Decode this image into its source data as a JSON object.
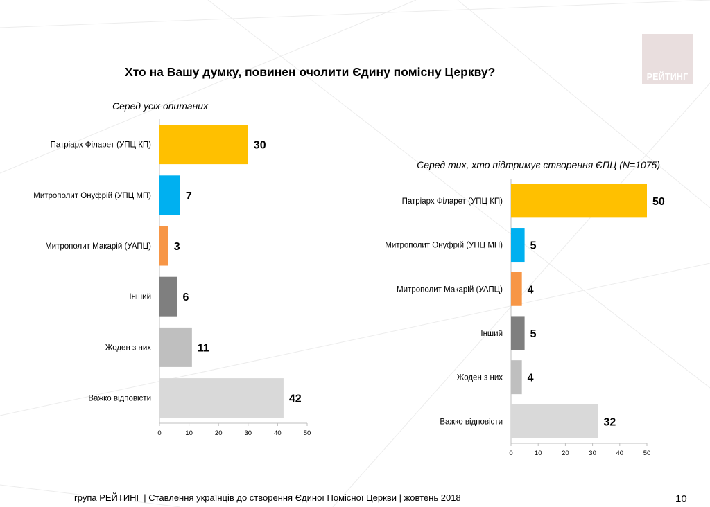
{
  "header": {
    "title": "Хто на Вашу думку, повинен очолити Єдину помісну Церкву?",
    "logo_text": "РЕЙТИНГ"
  },
  "colors": {
    "filaret": "#ffc000",
    "onufriy": "#00b0f0",
    "makariy": "#f79646",
    "inshyi": "#7f7f7f",
    "zhoden": "#bfbfbf",
    "vazhko": "#d9d9d9",
    "logo_bg": "#e9dede"
  },
  "chart_data": [
    {
      "type": "bar",
      "orientation": "horizontal",
      "subtitle": "Серед усіх опитаних",
      "categories": [
        "Патріарх Філарет (УПЦ КП)",
        "Митрополит Онуфрій (УПЦ МП)",
        "Митрополит Макарій (УАПЦ)",
        "Інший",
        "Жоден з них",
        "Важко відповісти"
      ],
      "values": [
        30,
        7,
        3,
        6,
        11,
        42
      ],
      "xlim": [
        0,
        50
      ],
      "xticks": [
        0,
        10,
        20,
        30,
        40,
        50
      ],
      "data_labels": true,
      "grid": false,
      "legend": "none"
    },
    {
      "type": "bar",
      "orientation": "horizontal",
      "subtitle": "Серед тих, хто підтримує створення ЄПЦ (N=1075)",
      "categories": [
        "Патріарх Філарет (УПЦ КП)",
        "Митрополит Онуфрій (УПЦ МП)",
        "Митрополит Макарій (УАПЦ)",
        "Інший",
        "Жоден з них",
        "Важко відповісти"
      ],
      "values": [
        50,
        5,
        4,
        5,
        4,
        32
      ],
      "xlim": [
        0,
        50
      ],
      "xticks": [
        0,
        10,
        20,
        30,
        40,
        50
      ],
      "data_labels": true,
      "grid": false,
      "legend": "none"
    }
  ],
  "footer": {
    "text": "група РЕЙТИНГ | Ставлення українців до створення Єдиної Помісної Церкви | жовтень 2018",
    "page_number": "10"
  }
}
